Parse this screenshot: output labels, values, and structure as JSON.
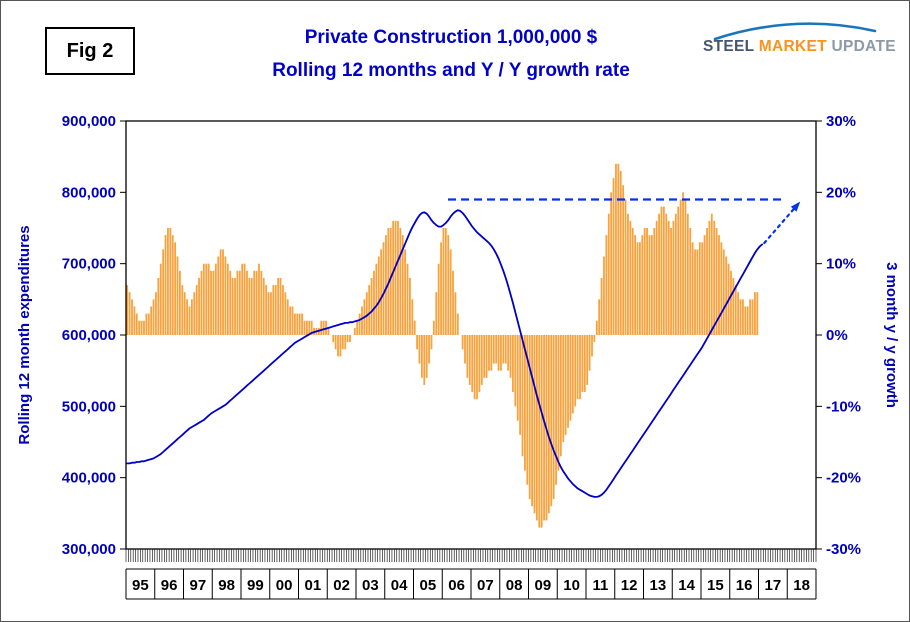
{
  "header": {
    "fig_label": "Fig 2",
    "title_line1": "Private Construction 1,000,000 $",
    "title_line2": "Rolling 12 months and Y / Y growth rate"
  },
  "logo": {
    "word1": "STEEL",
    "word2": "MARKET",
    "word3": "UPDATE"
  },
  "colors": {
    "title_blue": "#0000CC",
    "axis_label_blue": "#0000BB",
    "line_blue": "#0000C8",
    "bar_orange": "#F9A13B",
    "annotation_blue": "#0033EE",
    "logo_swoosh_blue": "#1B75BB"
  },
  "chart_data": {
    "type": "combo",
    "title": "Private Construction 1,000,000 $ — Rolling 12 months and Y / Y growth rate",
    "x_axis": {
      "start_year": 1995,
      "year_labels": [
        "95",
        "96",
        "97",
        "98",
        "99",
        "00",
        "01",
        "02",
        "03",
        "04",
        "05",
        "06",
        "07",
        "08",
        "09",
        "10",
        "11",
        "12",
        "13",
        "14",
        "15",
        "16",
        "17",
        "18"
      ]
    },
    "left_axis": {
      "title": "Rolling 12 month expenditures",
      "min": 300000,
      "max": 900000,
      "ticks": [
        {
          "label": "900,000",
          "value": 900000
        },
        {
          "label": "800,000",
          "value": 800000
        },
        {
          "label": "700,000",
          "value": 700000
        },
        {
          "label": "600,000",
          "value": 600000
        },
        {
          "label": "500,000",
          "value": 500000
        },
        {
          "label": "400,000",
          "value": 400000
        },
        {
          "label": "300,000",
          "value": 300000
        }
      ]
    },
    "right_axis": {
      "title": "3 month y / y growth",
      "min": -30,
      "max": 30,
      "ticks": [
        {
          "label": "30%",
          "value": 30
        },
        {
          "label": "20%",
          "value": 20
        },
        {
          "label": "10%",
          "value": 10
        },
        {
          "label": "0%",
          "value": 0
        },
        {
          "label": "-10%",
          "value": -10
        },
        {
          "label": "-20%",
          "value": -20
        },
        {
          "label": "-30%",
          "value": -30
        }
      ]
    },
    "series": [
      {
        "name": "Rolling 12 month expenditures",
        "type": "line",
        "axis": "left",
        "color": "#0000C8",
        "start": "1995-01",
        "monthly_values_thousands": [
          420,
          420,
          421,
          421,
          422,
          422,
          423,
          423,
          424,
          425,
          426,
          427,
          429,
          431,
          433,
          436,
          439,
          442,
          445,
          448,
          451,
          454,
          457,
          460,
          463,
          466,
          469,
          471,
          473,
          475,
          477,
          479,
          481,
          484,
          487,
          490,
          492,
          494,
          496,
          498,
          500,
          502,
          505,
          508,
          511,
          514,
          517,
          520,
          523,
          526,
          529,
          532,
          535,
          538,
          541,
          544,
          547,
          550,
          553,
          556,
          559,
          562,
          565,
          568,
          571,
          574,
          577,
          580,
          583,
          586,
          589,
          591,
          593,
          595,
          597,
          599,
          601,
          603,
          604,
          605,
          606,
          607,
          608,
          609,
          610,
          611,
          612,
          613,
          614,
          615,
          616,
          617,
          617,
          618,
          618,
          619,
          620,
          621,
          623,
          625,
          627,
          630,
          633,
          637,
          641,
          646,
          652,
          658,
          665,
          672,
          680,
          688,
          696,
          704,
          712,
          720,
          728,
          736,
          744,
          751,
          757,
          763,
          768,
          771,
          772,
          770,
          766,
          761,
          757,
          754,
          752,
          752,
          754,
          757,
          761,
          766,
          770,
          773,
          775,
          774,
          771,
          767,
          762,
          757,
          752,
          748,
          744,
          741,
          738,
          735,
          732,
          729,
          725,
          720,
          714,
          707,
          699,
          690,
          680,
          669,
          657,
          645,
          632,
          619,
          606,
          593,
          580,
          567,
          554,
          541,
          528,
          515,
          503,
          491,
          479,
          468,
          457,
          447,
          438,
          430,
          422,
          415,
          409,
          404,
          399,
          395,
          391,
          388,
          385,
          383,
          381,
          379,
          377,
          375,
          374,
          373,
          373,
          374,
          376,
          379,
          383,
          388,
          393,
          398,
          403,
          408,
          413,
          418,
          423,
          428,
          433,
          438,
          443,
          448,
          453,
          458,
          463,
          468,
          473,
          478,
          483,
          488,
          493,
          498,
          503,
          508,
          513,
          518,
          523,
          528,
          533,
          538,
          543,
          548,
          553,
          558,
          563,
          568,
          573,
          578,
          583,
          589,
          595,
          601,
          607,
          613,
          619,
          625,
          631,
          637,
          643,
          649,
          655,
          661,
          667,
          673,
          679,
          685,
          691,
          697,
          703,
          709,
          715,
          720,
          724,
          727
        ]
      },
      {
        "name": "3 month y / y growth",
        "type": "bar",
        "axis": "right",
        "color": "#F9A13B",
        "start": "1995-01",
        "monthly_values_pct": [
          7,
          6,
          5,
          4,
          3,
          2,
          2,
          2,
          3,
          3,
          4,
          5,
          6,
          8,
          10,
          12,
          14,
          15,
          15,
          14,
          13,
          11,
          9,
          7,
          6,
          5,
          4,
          5,
          6,
          7,
          8,
          9,
          10,
          10,
          10,
          9,
          9,
          10,
          11,
          12,
          12,
          11,
          10,
          9,
          8,
          8,
          9,
          9,
          10,
          10,
          9,
          8,
          8,
          9,
          9,
          10,
          9,
          8,
          7,
          6,
          6,
          7,
          7,
          8,
          8,
          7,
          6,
          5,
          4,
          4,
          3,
          3,
          3,
          3,
          2,
          2,
          2,
          2,
          1,
          1,
          1,
          2,
          2,
          2,
          1,
          0,
          -1,
          -2,
          -3,
          -3,
          -2,
          -2,
          -1,
          -1,
          0,
          1,
          2,
          3,
          4,
          5,
          6,
          7,
          8,
          9,
          10,
          11,
          12,
          13,
          14,
          15,
          15,
          16,
          16,
          16,
          15,
          14,
          12,
          10,
          8,
          5,
          2,
          -2,
          -4,
          -6,
          -7,
          -6,
          -4,
          -2,
          2,
          6,
          10,
          13,
          15,
          15,
          14,
          12,
          9,
          6,
          3,
          0,
          -2,
          -4,
          -6,
          -7,
          -8,
          -9,
          -9,
          -8,
          -7,
          -6,
          -6,
          -5,
          -5,
          -4,
          -4,
          -5,
          -5,
          -4,
          -4,
          -5,
          -6,
          -8,
          -10,
          -12,
          -14,
          -17,
          -19,
          -21,
          -23,
          -24,
          -25,
          -26,
          -27,
          -27,
          -26,
          -26,
          -25,
          -24,
          -23,
          -21,
          -19,
          -17,
          -15,
          -14,
          -13,
          -12,
          -11,
          -10,
          -9,
          -9,
          -8,
          -8,
          -7,
          -5,
          -3,
          -1,
          2,
          5,
          8,
          11,
          14,
          17,
          20,
          22,
          24,
          24,
          23,
          21,
          19,
          17,
          16,
          15,
          14,
          13,
          13,
          14,
          15,
          15,
          14,
          14,
          15,
          16,
          17,
          18,
          18,
          17,
          16,
          15,
          16,
          17,
          18,
          19,
          20,
          19,
          17,
          15,
          13,
          12,
          12,
          13,
          13,
          14,
          15,
          16,
          17,
          16,
          15,
          14,
          13,
          12,
          11,
          10,
          9,
          8,
          7,
          6,
          5,
          5,
          4,
          4,
          5,
          5,
          6,
          6
        ]
      }
    ],
    "annotations": {
      "dashed_level": {
        "pct": 19,
        "from_year": 2006.2,
        "to_year": 2017.9,
        "color": "#0033EE",
        "style": "dashed"
      },
      "forecast_arrow": {
        "from": [
          2017.2,
          12.9
        ],
        "to": [
          2018.45,
          18.7
        ],
        "color": "#0033EE",
        "style": "dotted-arrow"
      }
    }
  }
}
